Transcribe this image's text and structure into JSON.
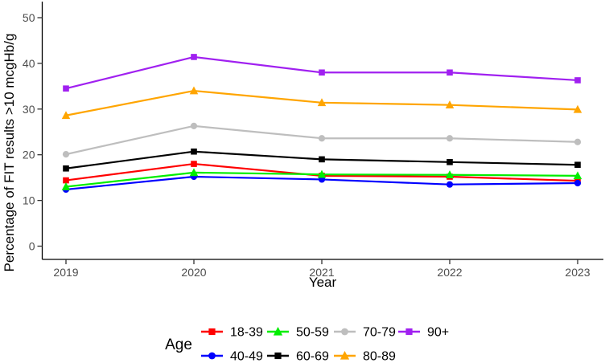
{
  "chart_data": {
    "type": "line",
    "x": [
      2019,
      2020,
      2021,
      2022,
      2023
    ],
    "xlabel": "Year",
    "ylabel": "Percentage of FIT results >10 mcgHb/g",
    "ylim": [
      0,
      50
    ],
    "yticks": [
      0,
      10,
      20,
      30,
      40,
      50
    ],
    "grid": false,
    "legend_title": "Age",
    "legend_position": "bottom-center-two-rows",
    "axis_color": "#000000",
    "tick_label_color": "#4d4d4d",
    "series": [
      {
        "name": "18-39",
        "color": "#FF0000",
        "marker": "square",
        "values": [
          14.4,
          18.0,
          15.4,
          15.2,
          14.3
        ]
      },
      {
        "name": "40-49",
        "color": "#0000FF",
        "marker": "circle",
        "values": [
          12.4,
          15.2,
          14.6,
          13.5,
          13.8
        ]
      },
      {
        "name": "50-59",
        "color": "#00EE00",
        "marker": "triangle",
        "values": [
          13.0,
          16.1,
          15.7,
          15.6,
          15.4
        ]
      },
      {
        "name": "60-69",
        "color": "#000000",
        "marker": "square",
        "values": [
          17.0,
          20.7,
          19.0,
          18.4,
          17.8
        ]
      },
      {
        "name": "70-79",
        "color": "#BEBEBE",
        "marker": "circle",
        "values": [
          20.1,
          26.3,
          23.6,
          23.6,
          22.8
        ]
      },
      {
        "name": "80-89",
        "color": "#FFA500",
        "marker": "triangle",
        "values": [
          28.6,
          34.0,
          31.4,
          30.9,
          29.9
        ]
      },
      {
        "name": "90+",
        "color": "#A020F0",
        "marker": "square",
        "values": [
          34.5,
          41.4,
          38.0,
          38.0,
          36.3
        ]
      }
    ]
  }
}
